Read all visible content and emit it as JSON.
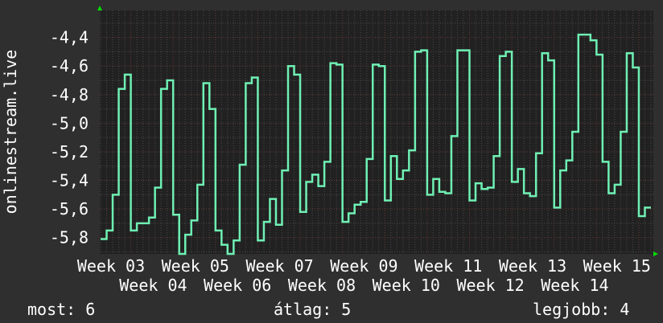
{
  "chart_data": {
    "type": "line",
    "step": true,
    "ylabel": "onlinestream.live",
    "ylim": [
      -5.914,
      -4.211
    ],
    "y_ticks": [
      "-4,4",
      "-4,6",
      "-4,8",
      "-5,0",
      "-5,2",
      "-5,4",
      "-5,6",
      "-5,8"
    ],
    "y_tick_values": [
      -4.4,
      -4.6,
      -4.8,
      -5.0,
      -5.2,
      -5.4,
      -5.6,
      -5.8
    ],
    "x_ticks": [
      "Week 03",
      "Week 04",
      "Week 05",
      "Week 06",
      "Week 07",
      "Week 08",
      "Week 09",
      "Week 10",
      "Week 11",
      "Week 12",
      "Week 13",
      "Week 14",
      "Week 15"
    ],
    "grid": true,
    "line_color": "#6ff0b4",
    "values": [
      -5.81,
      -5.75,
      -5.5,
      -4.76,
      -4.66,
      -5.75,
      -5.7,
      -5.7,
      -5.66,
      -5.45,
      -4.76,
      -4.7,
      -5.64,
      -5.94,
      -5.78,
      -5.68,
      -5.43,
      -4.72,
      -4.9,
      -5.75,
      -5.85,
      -5.92,
      -5.82,
      -5.29,
      -4.72,
      -4.68,
      -5.82,
      -5.69,
      -5.53,
      -5.71,
      -5.33,
      -4.6,
      -4.66,
      -5.62,
      -5.41,
      -5.36,
      -5.44,
      -5.27,
      -4.58,
      -4.59,
      -5.69,
      -5.63,
      -5.57,
      -5.55,
      -5.25,
      -4.59,
      -4.6,
      -5.54,
      -5.23,
      -5.39,
      -5.33,
      -5.19,
      -4.5,
      -4.49,
      -5.5,
      -5.39,
      -5.48,
      -5.49,
      -5.09,
      -4.49,
      -4.49,
      -5.54,
      -5.42,
      -5.46,
      -5.45,
      -5.23,
      -4.53,
      -4.5,
      -5.41,
      -5.32,
      -5.49,
      -5.51,
      -5.21,
      -4.51,
      -4.56,
      -5.59,
      -5.33,
      -5.26,
      -5.06,
      -4.38,
      -4.38,
      -4.42,
      -4.52,
      -5.27,
      -5.49,
      -5.43,
      -5.06,
      -4.51,
      -4.61,
      -5.65,
      -5.59
    ]
  },
  "legend": {
    "now": "most: 6",
    "avg": "átlag: 5",
    "best": "legjobb: 4"
  }
}
